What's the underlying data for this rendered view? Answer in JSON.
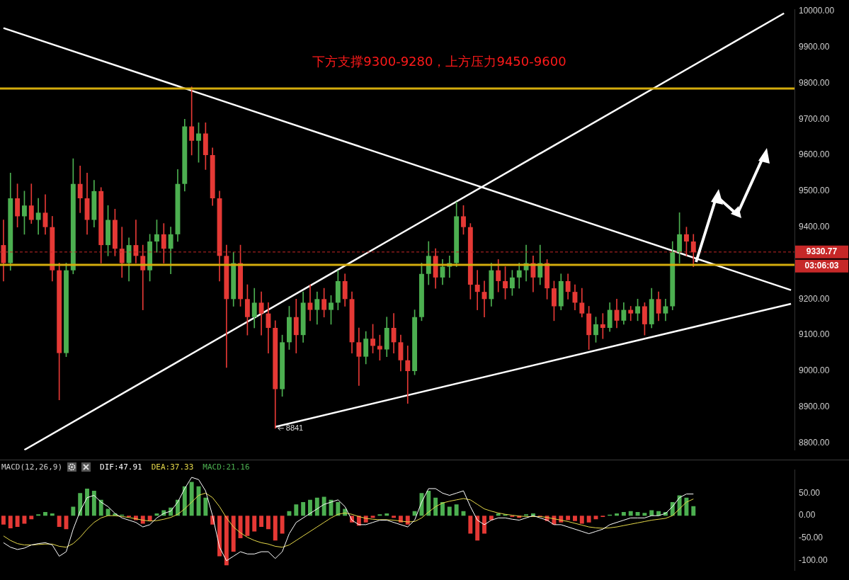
{
  "chart_data": [
    {
      "type": "candlestick",
      "categories": [
        null,
        null,
        null,
        null,
        null,
        null,
        null,
        null,
        null,
        null,
        null,
        null,
        null,
        null,
        null,
        null,
        null,
        null,
        null,
        null,
        null,
        null,
        null,
        null,
        null,
        null,
        null,
        null,
        null,
        null,
        null,
        null,
        null,
        null,
        null,
        null,
        null,
        null,
        null,
        null,
        null,
        null,
        null,
        null,
        null,
        null,
        null,
        null,
        null,
        null,
        null,
        null,
        null,
        null,
        null,
        null,
        null,
        null,
        null,
        null,
        null,
        null,
        null,
        null,
        null,
        null,
        null,
        null,
        null,
        null,
        null,
        null,
        null,
        null,
        null,
        null,
        null,
        null,
        null,
        null,
        null,
        null,
        null,
        null,
        null,
        null,
        null,
        null,
        null,
        null,
        null,
        null,
        null,
        null,
        null,
        null,
        null,
        null,
        null,
        null,
        null,
        null,
        null,
        null,
        null,
        null,
        null,
        null,
        null,
        null,
        null,
        null,
        null,
        null
      ],
      "ohlc": [
        [
          9350,
          9420,
          9250,
          9300
        ],
        [
          9300,
          9550,
          9280,
          9480
        ],
        [
          9480,
          9520,
          9400,
          9430
        ],
        [
          9430,
          9500,
          9380,
          9460
        ],
        [
          9460,
          9520,
          9410,
          9420
        ],
        [
          9420,
          9480,
          9380,
          9440
        ],
        [
          9440,
          9490,
          9380,
          9400
        ],
        [
          9400,
          9430,
          9250,
          9280
        ],
        [
          9280,
          9300,
          8920,
          9050
        ],
        [
          9050,
          9300,
          9040,
          9280
        ],
        [
          9280,
          9590,
          9270,
          9520
        ],
        [
          9520,
          9570,
          9440,
          9480
        ],
        [
          9480,
          9550,
          9380,
          9420
        ],
        [
          9420,
          9530,
          9400,
          9500
        ],
        [
          9500,
          9510,
          9300,
          9350
        ],
        [
          9350,
          9460,
          9320,
          9420
        ],
        [
          9420,
          9450,
          9320,
          9340
        ],
        [
          9340,
          9400,
          9260,
          9300
        ],
        [
          9300,
          9370,
          9250,
          9350
        ],
        [
          9350,
          9420,
          9300,
          9320
        ],
        [
          9320,
          9350,
          9170,
          9280
        ],
        [
          9280,
          9380,
          9250,
          9360
        ],
        [
          9360,
          9420,
          9330,
          9380
        ],
        [
          9380,
          9410,
          9300,
          9340
        ],
        [
          9340,
          9400,
          9270,
          9380
        ],
        [
          9380,
          9560,
          9360,
          9520
        ],
        [
          9520,
          9700,
          9500,
          9680
        ],
        [
          9680,
          9790,
          9600,
          9640
        ],
        [
          9640,
          9690,
          9580,
          9660
        ],
        [
          9660,
          9690,
          9560,
          9600
        ],
        [
          9600,
          9620,
          9460,
          9480
        ],
        [
          9480,
          9500,
          9250,
          9320
        ],
        [
          9320,
          9350,
          9010,
          9200
        ],
        [
          9200,
          9330,
          9180,
          9300
        ],
        [
          9300,
          9350,
          9180,
          9200
        ],
        [
          9200,
          9240,
          9100,
          9150
        ],
        [
          9150,
          9230,
          9120,
          9190
        ],
        [
          9190,
          9220,
          9100,
          9160
        ],
        [
          9160,
          9190,
          9050,
          9120
        ],
        [
          9120,
          9140,
          8841,
          8950
        ],
        [
          8950,
          9100,
          8930,
          9080
        ],
        [
          9080,
          9180,
          9060,
          9150
        ],
        [
          9150,
          9200,
          9050,
          9100
        ],
        [
          9100,
          9220,
          9080,
          9190
        ],
        [
          9190,
          9240,
          9140,
          9170
        ],
        [
          9170,
          9220,
          9130,
          9200
        ],
        [
          9200,
          9230,
          9150,
          9170
        ],
        [
          9170,
          9210,
          9130,
          9190
        ],
        [
          9190,
          9280,
          9170,
          9250
        ],
        [
          9250,
          9270,
          9180,
          9200
        ],
        [
          9200,
          9220,
          9050,
          9080
        ],
        [
          9080,
          9120,
          8960,
          9040
        ],
        [
          9040,
          9110,
          9020,
          9090
        ],
        [
          9090,
          9130,
          9050,
          9070
        ],
        [
          9070,
          9100,
          9030,
          9060
        ],
        [
          9060,
          9150,
          9040,
          9120
        ],
        [
          9120,
          9160,
          9050,
          9080
        ],
        [
          9080,
          9100,
          9000,
          9030
        ],
        [
          9030,
          9070,
          8910,
          9000
        ],
        [
          9000,
          9170,
          8990,
          9150
        ],
        [
          9150,
          9300,
          9140,
          9270
        ],
        [
          9270,
          9360,
          9240,
          9320
        ],
        [
          9320,
          9340,
          9230,
          9260
        ],
        [
          9260,
          9310,
          9240,
          9290
        ],
        [
          9290,
          9320,
          9260,
          9300
        ],
        [
          9300,
          9470,
          9290,
          9430
        ],
        [
          9430,
          9460,
          9380,
          9400
        ],
        [
          9400,
          9410,
          9200,
          9240
        ],
        [
          9240,
          9280,
          9170,
          9220
        ],
        [
          9220,
          9250,
          9150,
          9200
        ],
        [
          9200,
          9300,
          9180,
          9280
        ],
        [
          9280,
          9310,
          9220,
          9250
        ],
        [
          9250,
          9290,
          9200,
          9230
        ],
        [
          9230,
          9280,
          9210,
          9260
        ],
        [
          9260,
          9300,
          9230,
          9280
        ],
        [
          9280,
          9350,
          9250,
          9300
        ],
        [
          9300,
          9320,
          9220,
          9260
        ],
        [
          9260,
          9350,
          9240,
          9300
        ],
        [
          9300,
          9310,
          9200,
          9230
        ],
        [
          9230,
          9250,
          9140,
          9180
        ],
        [
          9180,
          9270,
          9170,
          9250
        ],
        [
          9250,
          9270,
          9200,
          9220
        ],
        [
          9220,
          9240,
          9170,
          9190
        ],
        [
          9190,
          9230,
          9150,
          9160
        ],
        [
          9160,
          9180,
          9060,
          9100
        ],
        [
          9100,
          9150,
          9080,
          9130
        ],
        [
          9130,
          9160,
          9090,
          9120
        ],
        [
          9120,
          9190,
          9110,
          9170
        ],
        [
          9170,
          9200,
          9120,
          9140
        ],
        [
          9140,
          9190,
          9130,
          9170
        ],
        [
          9170,
          9180,
          9140,
          9160
        ],
        [
          9160,
          9200,
          9140,
          9180
        ],
        [
          9180,
          9190,
          9100,
          9130
        ],
        [
          9130,
          9230,
          9120,
          9200
        ],
        [
          9200,
          9220,
          9140,
          9160
        ],
        [
          9160,
          9200,
          9140,
          9180
        ],
        [
          9180,
          9360,
          9170,
          9330
        ],
        [
          9330,
          9440,
          9300,
          9380
        ],
        [
          9380,
          9400,
          9320,
          9360
        ],
        [
          9360,
          9380,
          9290,
          9330
        ],
        null,
        null,
        null,
        null,
        null,
        null,
        null,
        null,
        null,
        null,
        null,
        null,
        null,
        null
      ],
      "colors": [
        "#e53935",
        "#4caf50",
        "#e53935",
        "#4caf50",
        "#e53935",
        "#4caf50",
        "#e53935",
        "#e53935",
        "#e53935",
        "#4caf50",
        "#4caf50",
        "#e53935",
        "#e53935",
        "#4caf50",
        "#e53935",
        "#4caf50",
        "#e53935",
        "#e53935",
        "#4caf50",
        "#e53935",
        "#e53935",
        "#4caf50",
        "#4caf50",
        "#e53935",
        "#4caf50",
        "#4caf50",
        "#4caf50",
        "#e53935",
        "#4caf50",
        "#e53935",
        "#e53935",
        "#e53935",
        "#e53935",
        "#4caf50",
        "#e53935",
        "#e53935",
        "#4caf50",
        "#e53935",
        "#e53935",
        "#e53935",
        "#4caf50",
        "#4caf50",
        "#e53935",
        "#4caf50",
        "#e53935",
        "#4caf50",
        "#e53935",
        "#4caf50",
        "#4caf50",
        "#e53935",
        "#e53935",
        "#e53935",
        "#4caf50",
        "#e53935",
        "#e53935",
        "#4caf50",
        "#e53935",
        "#e53935",
        "#e53935",
        "#4caf50",
        "#4caf50",
        "#4caf50",
        "#e53935",
        "#4caf50",
        "#4caf50",
        "#4caf50",
        "#e53935",
        "#e53935",
        "#e53935",
        "#e53935",
        "#4caf50",
        "#e53935",
        "#e53935",
        "#4caf50",
        "#4caf50",
        "#4caf50",
        "#e53935",
        "#4caf50",
        "#e53935",
        "#e53935",
        "#4caf50",
        "#e53935",
        "#e53935",
        "#e53935",
        "#e53935",
        "#4caf50",
        "#e53935",
        "#4caf50",
        "#e53935",
        "#4caf50",
        "#e53935",
        "#4caf50",
        "#e53935",
        "#4caf50",
        "#e53935",
        "#4caf50",
        "#4caf50",
        "#4caf50",
        "#e53935",
        "#e53935",
        null,
        null,
        null,
        null,
        null,
        null,
        null,
        null,
        null,
        null,
        null,
        null,
        null,
        null
      ],
      "series": [
        {
          "type": "line",
          "color": "#ffffff",
          "values": [
            9953,
            null,
            null,
            null,
            null,
            null,
            null,
            null,
            null,
            null,
            null,
            null,
            null,
            null,
            null,
            null,
            null,
            null,
            null,
            null,
            null,
            null,
            null,
            null,
            null,
            null,
            null,
            null,
            null,
            null,
            null,
            null,
            null,
            null,
            null,
            null,
            null,
            null,
            null,
            null,
            null,
            null,
            null,
            null,
            null,
            null,
            null,
            null,
            null,
            null,
            null,
            null,
            null,
            null,
            null,
            null,
            null,
            null,
            null,
            null,
            null,
            null,
            null,
            null,
            null,
            null,
            null,
            null,
            null,
            null,
            null,
            null,
            null,
            null,
            null,
            null,
            null,
            null,
            null,
            null,
            null,
            null,
            null,
            null,
            null,
            null,
            null,
            null,
            null,
            null,
            null,
            null,
            null,
            null,
            null,
            null,
            null,
            null,
            null,
            null,
            null,
            null,
            null,
            null,
            null,
            null,
            null,
            null,
            null,
            null,
            null,
            null,
            null,
            9225
          ]
        },
        {
          "type": "line",
          "color": "#ffffff",
          "values": [
            null,
            null,
            null,
            8781,
            null,
            null,
            null,
            null,
            null,
            null,
            null,
            null,
            null,
            null,
            null,
            null,
            null,
            null,
            null,
            null,
            null,
            null,
            null,
            null,
            null,
            null,
            null,
            null,
            null,
            null,
            null,
            null,
            null,
            null,
            null,
            null,
            null,
            null,
            null,
            null,
            null,
            null,
            null,
            null,
            null,
            null,
            null,
            null,
            null,
            null,
            null,
            null,
            null,
            null,
            null,
            null,
            null,
            null,
            null,
            null,
            null,
            null,
            null,
            null,
            null,
            null,
            null,
            null,
            null,
            null,
            null,
            null,
            null,
            null,
            null,
            null,
            null,
            null,
            null,
            null,
            null,
            null,
            null,
            null,
            null,
            null,
            null,
            null,
            null,
            null,
            null,
            null,
            null,
            null,
            null,
            null,
            null,
            null,
            null,
            null,
            null,
            null,
            null,
            null,
            null,
            null,
            null,
            null,
            null,
            null,
            null,
            null,
            9994,
            null
          ]
        },
        {
          "type": "line",
          "color": "#ffffff",
          "values": [
            null,
            null,
            null,
            null,
            null,
            null,
            null,
            null,
            null,
            null,
            null,
            null,
            null,
            null,
            null,
            null,
            null,
            null,
            null,
            null,
            null,
            null,
            null,
            null,
            null,
            null,
            null,
            null,
            null,
            null,
            null,
            null,
            null,
            null,
            null,
            null,
            null,
            null,
            null,
            8845,
            null,
            null,
            null,
            null,
            null,
            null,
            null,
            null,
            null,
            null,
            null,
            null,
            null,
            null,
            null,
            null,
            null,
            null,
            null,
            null,
            null,
            null,
            null,
            null,
            null,
            null,
            null,
            null,
            null,
            null,
            null,
            null,
            null,
            null,
            null,
            null,
            null,
            null,
            null,
            null,
            null,
            null,
            null,
            null,
            null,
            null,
            null,
            null,
            null,
            null,
            null,
            null,
            null,
            null,
            null,
            null,
            null,
            null,
            null,
            null,
            null,
            null,
            null,
            null,
            null,
            null,
            null,
            null,
            null,
            null,
            null,
            null,
            null,
            9187
          ]
        }
      ],
      "ylim": [
        8780,
        10005
      ],
      "yticks": [
        {
          "value": 8800,
          "label": "8800.00"
        },
        {
          "value": 8900,
          "label": "8900.00"
        },
        {
          "value": 9000,
          "label": "9000.00"
        },
        {
          "value": 9100,
          "label": "9100.00"
        },
        {
          "value": 9200,
          "label": "9200.00"
        },
        {
          "value": 9400,
          "label": "9400.00"
        },
        {
          "value": 9500,
          "label": "9500.00"
        },
        {
          "value": 9600,
          "label": "9600.00"
        },
        {
          "value": 9700,
          "label": "9700.00"
        },
        {
          "value": 9800,
          "label": "9800.00"
        },
        {
          "value": 9900,
          "label": "9900.00"
        },
        {
          "value": 10000,
          "label": "10000.00"
        }
      ],
      "ref_lines": [
        {
          "axis": "y",
          "value": 9785,
          "color": "#d4ac0d"
        },
        {
          "axis": "y",
          "value": 9295,
          "color": "#d4ac0d"
        },
        {
          "axis": "y",
          "value": 9330.77,
          "label": "9330.77",
          "color": "#c62828",
          "line_style": "dashed"
        }
      ],
      "annotations": [
        "下方支撑9300-9280，上方压力9450-9600",
        "03:06:03",
        "8841"
      ]
    },
    {
      "type": "bar",
      "title": "MACD(12,26,9)",
      "legend": "top left",
      "categories": [
        null,
        null,
        null,
        null,
        null,
        null,
        null,
        null,
        null,
        null,
        null,
        null,
        null,
        null,
        null,
        null,
        null,
        null,
        null,
        null,
        null,
        null,
        null,
        null,
        null,
        null,
        null,
        null,
        null,
        null,
        null,
        null,
        null,
        null,
        null,
        null,
        null,
        null,
        null,
        null,
        null,
        null,
        null,
        null,
        null,
        null,
        null,
        null,
        null,
        null,
        null,
        null,
        null,
        null,
        null,
        null,
        null,
        null,
        null,
        null,
        null,
        null,
        null,
        null,
        null,
        null,
        null,
        null,
        null,
        null,
        null,
        null,
        null,
        null,
        null,
        null,
        null,
        null,
        null,
        null,
        null,
        null,
        null,
        null,
        null,
        null,
        null,
        null,
        null,
        null,
        null,
        null,
        null,
        null,
        null,
        null,
        null,
        null,
        null,
        null,
        null,
        null,
        null,
        null,
        null,
        null,
        null,
        null,
        null,
        null,
        null,
        null,
        null,
        null
      ],
      "series": [
        {
          "name": "DIF:47.91",
          "type": "line",
          "color": "#ffffff",
          "values": [
            -60,
            -70,
            -75,
            -72,
            -65,
            -62,
            -60,
            -65,
            -90,
            -80,
            -30,
            10,
            40,
            45,
            30,
            20,
            5,
            -5,
            -10,
            -15,
            -25,
            -20,
            -5,
            5,
            10,
            30,
            60,
            85,
            80,
            55,
            0,
            -70,
            -100,
            -90,
            -80,
            -85,
            -85,
            -80,
            -80,
            -95,
            -80,
            -40,
            -15,
            -5,
            5,
            15,
            25,
            30,
            35,
            20,
            -10,
            -20,
            -20,
            -15,
            -10,
            -10,
            -15,
            -20,
            -25,
            -10,
            30,
            60,
            60,
            50,
            45,
            50,
            55,
            20,
            -10,
            -20,
            -10,
            -5,
            -5,
            -8,
            -10,
            -5,
            0,
            -5,
            -10,
            -20,
            -20,
            -25,
            -30,
            -35,
            -40,
            -35,
            -30,
            -20,
            -15,
            -10,
            -5,
            -5,
            -5,
            0,
            0,
            5,
            20,
            40,
            48,
            48,
            null,
            null,
            null,
            null,
            null,
            null,
            null,
            null,
            null,
            null,
            null,
            null,
            null,
            null
          ]
        },
        {
          "name": "DEA:37.33",
          "type": "line",
          "color": "#e6d94a",
          "values": [
            -45,
            -55,
            -62,
            -65,
            -65,
            -64,
            -63,
            -63,
            -68,
            -70,
            -62,
            -48,
            -30,
            -15,
            -5,
            0,
            0,
            -2,
            -4,
            -7,
            -10,
            -12,
            -11,
            -8,
            -4,
            3,
            15,
            30,
            45,
            50,
            40,
            20,
            -5,
            -25,
            -38,
            -48,
            -55,
            -60,
            -63,
            -68,
            -70,
            -65,
            -55,
            -45,
            -35,
            -25,
            -15,
            -5,
            3,
            6,
            3,
            -2,
            -6,
            -8,
            -9,
            -9,
            -10,
            -12,
            -14,
            -13,
            -5,
            8,
            20,
            28,
            32,
            35,
            38,
            35,
            25,
            15,
            10,
            6,
            3,
            1,
            -1,
            -2,
            -2,
            -2,
            -4,
            -7,
            -10,
            -13,
            -17,
            -21,
            -25,
            -27,
            -28,
            -27,
            -25,
            -22,
            -19,
            -16,
            -13,
            -10,
            -8,
            -6,
            0,
            15,
            30,
            37,
            null,
            null,
            null,
            null,
            null,
            null,
            null,
            null,
            null,
            null,
            null,
            null,
            null,
            null
          ]
        },
        {
          "name": "MACD:21.16",
          "color": "#4caf50",
          "values": [
            -20,
            -28,
            -25,
            -18,
            -8,
            3,
            8,
            5,
            -25,
            -30,
            20,
            50,
            60,
            55,
            35,
            15,
            5,
            2,
            -3,
            -10,
            -18,
            -12,
            5,
            12,
            18,
            35,
            65,
            75,
            65,
            40,
            -20,
            -90,
            -110,
            -80,
            -50,
            -45,
            -35,
            -25,
            -30,
            -55,
            -40,
            10,
            25,
            30,
            35,
            40,
            42,
            35,
            30,
            15,
            -15,
            -22,
            -15,
            -5,
            3,
            5,
            -5,
            -15,
            -20,
            10,
            50,
            55,
            40,
            30,
            20,
            25,
            10,
            -40,
            -55,
            -40,
            -10,
            5,
            3,
            -3,
            -5,
            3,
            5,
            -3,
            -12,
            -20,
            -15,
            -10,
            -12,
            -18,
            -15,
            -8,
            -3,
            2,
            5,
            8,
            10,
            8,
            6,
            12,
            10,
            8,
            30,
            45,
            40,
            21,
            null,
            null,
            null,
            null,
            null,
            null,
            null,
            null,
            null,
            null,
            null,
            null,
            null,
            null
          ],
          "colors": [
            "#e53935",
            "#e53935",
            "#e53935",
            "#e53935",
            "#e53935",
            "#4caf50",
            "#4caf50",
            "#4caf50",
            "#e53935",
            "#e53935",
            "#4caf50",
            "#4caf50",
            "#4caf50",
            "#4caf50",
            "#4caf50",
            "#4caf50",
            "#4caf50",
            "#4caf50",
            "#e53935",
            "#e53935",
            "#e53935",
            "#e53935",
            "#4caf50",
            "#4caf50",
            "#4caf50",
            "#4caf50",
            "#4caf50",
            "#4caf50",
            "#4caf50",
            "#4caf50",
            "#e53935",
            "#e53935",
            "#e53935",
            "#e53935",
            "#e53935",
            "#e53935",
            "#e53935",
            "#e53935",
            "#e53935",
            "#e53935",
            "#e53935",
            "#4caf50",
            "#4caf50",
            "#4caf50",
            "#4caf50",
            "#4caf50",
            "#4caf50",
            "#4caf50",
            "#4caf50",
            "#4caf50",
            "#e53935",
            "#e53935",
            "#e53935",
            "#e53935",
            "#4caf50",
            "#4caf50",
            "#e53935",
            "#e53935",
            "#e53935",
            "#4caf50",
            "#4caf50",
            "#4caf50",
            "#4caf50",
            "#4caf50",
            "#4caf50",
            "#4caf50",
            "#4caf50",
            "#e53935",
            "#e53935",
            "#e53935",
            "#e53935",
            "#4caf50",
            "#4caf50",
            "#e53935",
            "#e53935",
            "#4caf50",
            "#4caf50",
            "#e53935",
            "#e53935",
            "#e53935",
            "#e53935",
            "#e53935",
            "#e53935",
            "#e53935",
            "#e53935",
            "#e53935",
            "#e53935",
            "#4caf50",
            "#4caf50",
            "#4caf50",
            "#4caf50",
            "#4caf50",
            "#4caf50",
            "#4caf50",
            "#4caf50",
            "#4caf50",
            "#4caf50",
            "#4caf50",
            "#4caf50",
            "#4caf50",
            null,
            null,
            null,
            null,
            null,
            null,
            null,
            null,
            null,
            null,
            null,
            null,
            null,
            null
          ]
        }
      ],
      "ylim": [
        -122,
        102
      ],
      "yticks": [
        {
          "value": 50,
          "label": "50.00"
        },
        {
          "value": 0,
          "label": "0.00"
        },
        {
          "value": -50,
          "label": "-50.00"
        },
        {
          "value": -100,
          "label": "-100.00"
        }
      ]
    }
  ]
}
